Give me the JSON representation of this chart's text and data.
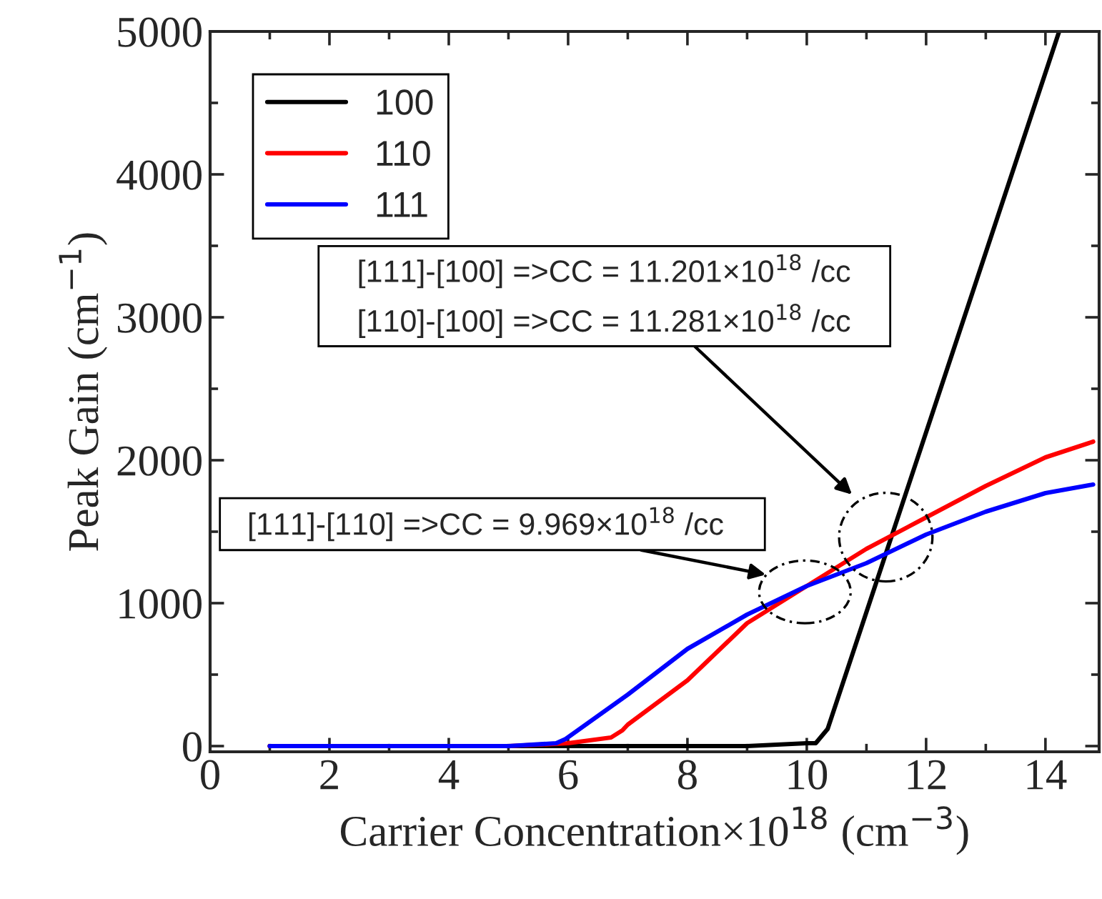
{
  "chart_data": {
    "type": "line",
    "xlabel": "Carrier Concentration×10$^{18}$ (cm$^{−3}$)",
    "ylabel": "Peak Gain (cm$^{−1}$)",
    "xlim": [
      0,
      14.9
    ],
    "ylim": [
      -40,
      5000
    ],
    "xticks": [
      0,
      2,
      4,
      6,
      8,
      10,
      12,
      14
    ],
    "yticks": [
      0,
      1000,
      2000,
      3000,
      4000,
      5000
    ],
    "grid": false,
    "legend": "top left",
    "line_style": "solid",
    "marker": "none",
    "series": [
      {
        "name": "100",
        "color": "#000000",
        "x": [
          1,
          5,
          9,
          10,
          10.15,
          10.35,
          14.23
        ],
        "values": [
          0,
          0,
          0,
          20,
          20,
          120,
          5000
        ]
      },
      {
        "name": "110",
        "color": "#ff0000",
        "x": [
          1,
          5,
          6,
          6.72,
          6.91,
          7,
          8,
          9,
          10,
          11,
          12,
          13,
          14,
          14.8
        ],
        "values": [
          0,
          0,
          20,
          60,
          110,
          150,
          460,
          860,
          1120,
          1380,
          1600,
          1820,
          2020,
          2130
        ]
      },
      {
        "name": "111",
        "color": "#0000ff",
        "x": [
          1,
          5,
          5.8,
          5.96,
          7,
          8,
          9,
          10,
          11,
          12,
          13,
          14,
          14.8
        ],
        "values": [
          0,
          0,
          20,
          50,
          360,
          680,
          920,
          1120,
          1280,
          1480,
          1640,
          1770,
          1830
        ]
      }
    ],
    "annotations": [
      "[111]-[100] =>CC = 11.201×10$^{18}$ /cc",
      "[110]-[100] =>CC = 11.281×10$^{18}$ /cc",
      "[111]-[110] =>CC = 9.969×10$^{18}$ /cc"
    ]
  }
}
